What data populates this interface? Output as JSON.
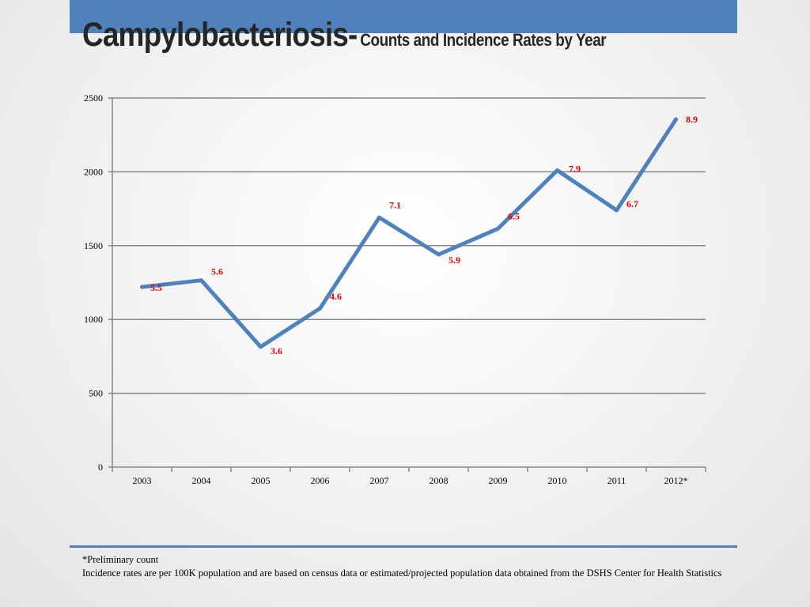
{
  "header": {
    "title": "Campylobacteriosis-",
    "subtitle": "Counts and Incidence Rates by Year"
  },
  "colors": {
    "accent": "#4f81bd",
    "line": "#4f81bd",
    "rate_label": "#e00000",
    "grid": "#868686"
  },
  "chart_data": {
    "type": "line",
    "title": "",
    "xlabel": "",
    "ylabel": "",
    "categories": [
      "2003",
      "2004",
      "2005",
      "2006",
      "2007",
      "2008",
      "2009",
      "2010",
      "2011",
      "2012*"
    ],
    "series": [
      {
        "values": [
          1220,
          1265,
          815,
          1075,
          1690,
          1440,
          1615,
          2010,
          1740,
          2355
        ]
      }
    ],
    "data_labels": [
      "5.5",
      "5.6",
      "3.6",
      "4.6",
      "7.1",
      "5.9",
      "6.5",
      "7.9",
      "6.7",
      "8.9"
    ],
    "ylim": [
      0,
      2500
    ],
    "yticks": [
      0,
      500,
      1000,
      1500,
      2000,
      2500
    ],
    "grid": true,
    "legend": "none"
  },
  "footer": {
    "line1": "*Preliminary count",
    "line2": "Incidence rates are per 100K population and are based on census data or estimated/projected population data obtained from the DSHS Center for Health Statistics"
  }
}
